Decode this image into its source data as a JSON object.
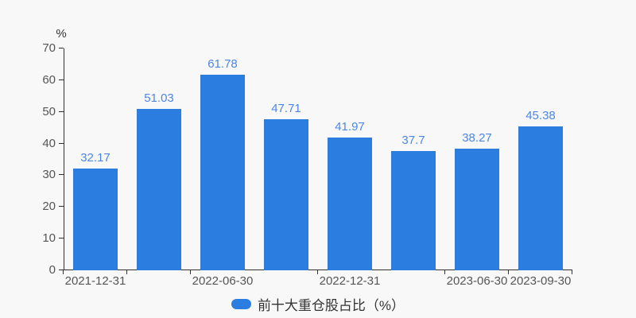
{
  "chart_data": {
    "type": "bar",
    "title": "",
    "legend": {
      "label": "前十大重仓股占比（%）",
      "position": "bottom-center"
    },
    "y_axis": {
      "unit": "%",
      "ticks": [
        0,
        10,
        20,
        30,
        40,
        50,
        60,
        70
      ],
      "min": 0,
      "max": 70
    },
    "x_axis": {
      "num_slots": 8,
      "labels": [
        {
          "slot": 0,
          "text": "2021-12-31"
        },
        {
          "slot": 2,
          "text": "2022-06-30"
        },
        {
          "slot": 4,
          "text": "2022-12-31"
        },
        {
          "slot": 6,
          "text": "2023-06-30"
        },
        {
          "slot": 7,
          "text": "2023-09-30"
        }
      ],
      "tick_boundaries": [
        0,
        1,
        2,
        4,
        6,
        7,
        8
      ]
    },
    "values": [
      32.17,
      51.03,
      61.78,
      47.71,
      41.97,
      37.7,
      38.27,
      45.38
    ],
    "value_labels": [
      "32.17",
      "51.03",
      "61.78",
      "47.71",
      "41.97",
      "37.7",
      "38.27",
      "45.38"
    ],
    "grid": false,
    "colors": {
      "bar": "#2c7de0",
      "value_label": "#4d87e6",
      "axis": "#333333",
      "tick_label": "#555555",
      "background": "#f8f8f8"
    }
  }
}
